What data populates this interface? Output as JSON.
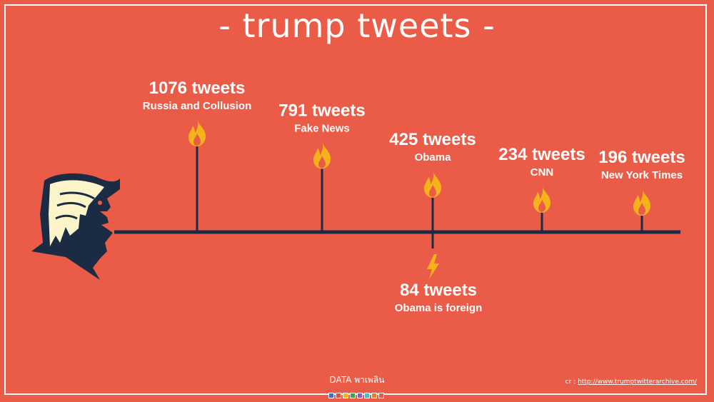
{
  "page": {
    "title": "- trump tweets -",
    "credit": "DATA พาเพลิน",
    "source_prefix": "cr : ",
    "source_link": "http://www.trumptwitterarchive.com/"
  },
  "colors": {
    "background": "#EA5C47",
    "axis": "#1B2B44",
    "flame": "#F5B21B",
    "text": "#FFFFFF",
    "hair": "#FAF4C8"
  },
  "icons": {
    "face": "trump-face-icon",
    "above_marker": "flame-icon",
    "below_marker": "lightning-icon"
  },
  "chart_data": {
    "type": "lollipop-timeline",
    "value_label_suffix": " tweets",
    "ylim": [
      0,
      1100
    ],
    "above": [
      {
        "topic": "Russia and Collusion",
        "value": 1076
      },
      {
        "topic": "Fake News",
        "value": 791
      },
      {
        "topic": "Obama",
        "value": 425
      },
      {
        "topic": "CNN",
        "value": 234
      },
      {
        "topic": "New York Times",
        "value": 196
      }
    ],
    "below": [
      {
        "topic": "Obama is foreign",
        "value": 84,
        "attached_to": "Obama"
      }
    ]
  }
}
